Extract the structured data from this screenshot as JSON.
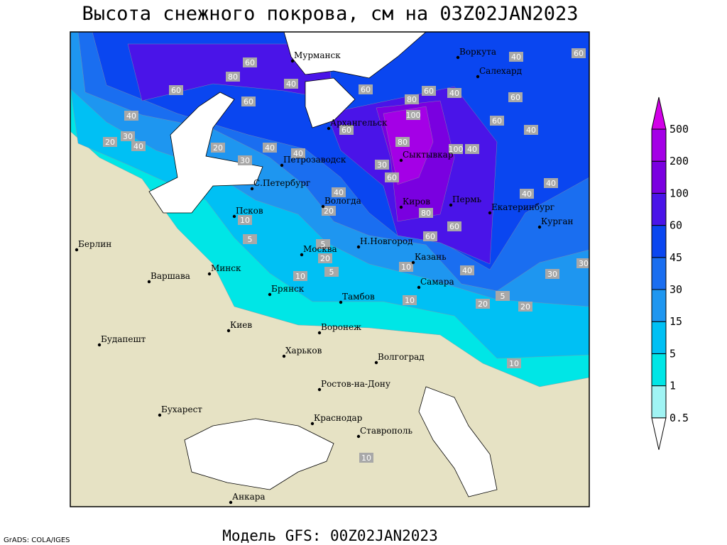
{
  "title": "Высота снежного покрова, см на 03Z02JAN2023",
  "cities": [
    "Мурманск",
    "Воркута",
    "Салехард",
    "Архангельск",
    "Сыктывкар",
    "Петрозаводск",
    "С.Петербург",
    "Вологда",
    "Киров",
    "Пермь",
    "Екатеринбург",
    "Курган",
    "Псков",
    "Берлин",
    "Н.Новгород",
    "Казань",
    "Москва",
    "Минск",
    "Варшава",
    "Брянск",
    "Самара",
    "Тамбов",
    "Воронеж",
    "Киев",
    "Харьков",
    "Волгоград",
    "Будапешт",
    "Ростов-на-Дону",
    "Бухарест",
    "Краснодар",
    "Ставрополь",
    "Анкара"
  ],
  "contour_labels": [
    60,
    80,
    60,
    60,
    40,
    30,
    20,
    40,
    20,
    40,
    30,
    40,
    40,
    60,
    60,
    40,
    80,
    100,
    60,
    80,
    60,
    40,
    40,
    60,
    60,
    100,
    40,
    60,
    30,
    40,
    20,
    80,
    60,
    60,
    40,
    40,
    10,
    5,
    5,
    20,
    10,
    5,
    10,
    40,
    30,
    30,
    20,
    5,
    20,
    10,
    10,
    10
  ],
  "colorbar": {
    "levels": [
      0.5,
      1,
      5,
      15,
      30,
      45,
      60,
      100,
      200,
      500
    ],
    "colors": [
      "#ffffff",
      "#a0f4f4",
      "#00e6e6",
      "#00c0f4",
      "#1e96f0",
      "#1a6ef0",
      "#0a46f0",
      "#4a14e8",
      "#7a00e0",
      "#a400e6",
      "#d200e8"
    ]
  },
  "footer": {
    "model": "Модель GFS: 00Z02JAN2023",
    "credit": "GrADS: COLA/IGES"
  }
}
